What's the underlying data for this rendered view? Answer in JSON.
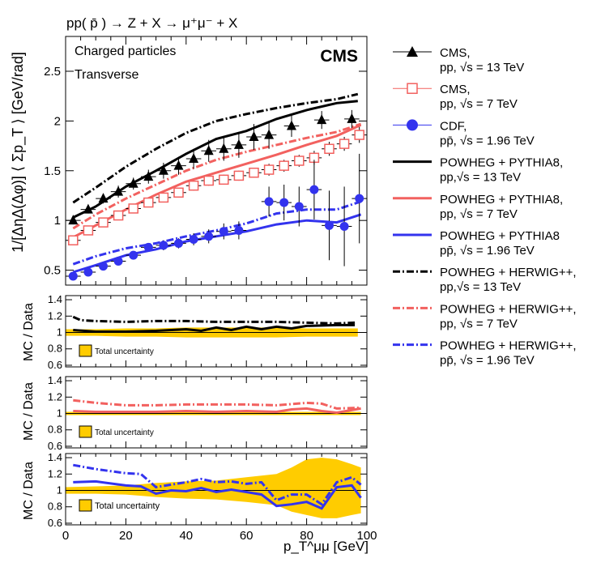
{
  "chart_data": {
    "type": "line",
    "title": "pp( p̄ ) → Z + X → μ⁺μ⁻ + X",
    "annotations": [
      "Charged particles",
      "Transverse",
      "CMS"
    ],
    "colors": {
      "black": "#000000",
      "red": "#f2615f",
      "blue": "#3333ee",
      "band": "#ffcc00"
    },
    "main_panel": {
      "ylabel": "1/[ΔηΔ(Δφ)] ⟨ Σp_T ⟩ [GeV/rad]",
      "xlim": [
        0,
        100
      ],
      "ylim": [
        0.35,
        2.85
      ],
      "yticks": [
        0.5,
        1,
        1.5,
        2,
        2.5
      ],
      "series": [
        {
          "name": "CMS 13 TeV data",
          "kind": "markers",
          "marker": "triangle",
          "color": "#000000",
          "x": [
            2.5,
            7.5,
            12.5,
            17.5,
            22.5,
            27.5,
            32.5,
            37.5,
            42.5,
            47.5,
            52.5,
            57.5,
            62.5,
            67.5,
            75,
            85,
            95
          ],
          "y": [
            1.0,
            1.11,
            1.22,
            1.29,
            1.37,
            1.44,
            1.5,
            1.55,
            1.62,
            1.7,
            1.72,
            1.76,
            1.84,
            1.86,
            1.95,
            2.01,
            2.02
          ],
          "err": [
            0.04,
            0.04,
            0.05,
            0.06,
            0.06,
            0.07,
            0.08,
            0.09,
            0.1,
            0.11,
            0.12,
            0.13,
            0.13,
            0.14,
            0.11,
            0.09,
            0.09
          ]
        },
        {
          "name": "CMS 7 TeV data",
          "kind": "markers",
          "marker": "open-square",
          "color": "#f2615f",
          "x": [
            2.5,
            7.5,
            12.5,
            17.5,
            22.5,
            27.5,
            32.5,
            37.5,
            42.5,
            47.5,
            52.5,
            57.5,
            62.5,
            67.5,
            72.5,
            77.5,
            82.5,
            87.5,
            92.5,
            97.5
          ],
          "y": [
            0.8,
            0.9,
            0.98,
            1.05,
            1.12,
            1.18,
            1.23,
            1.28,
            1.35,
            1.4,
            1.41,
            1.45,
            1.48,
            1.51,
            1.55,
            1.6,
            1.63,
            1.72,
            1.77,
            1.86
          ],
          "err": [
            0.02,
            0.02,
            0.03,
            0.03,
            0.03,
            0.04,
            0.04,
            0.04,
            0.05,
            0.05,
            0.05,
            0.05,
            0.05,
            0.06,
            0.06,
            0.06,
            0.07,
            0.07,
            0.07,
            0.08
          ]
        },
        {
          "name": "CDF 1.96 TeV data",
          "kind": "markers",
          "marker": "circle",
          "color": "#3333ee",
          "x": [
            2.5,
            7.5,
            12.5,
            17.5,
            22.5,
            27.5,
            32.5,
            37.5,
            42.5,
            47.5,
            52.5,
            57.5,
            67.5,
            72.5,
            77.5,
            82.5,
            87.5,
            92.5,
            97.5
          ],
          "y": [
            0.44,
            0.48,
            0.54,
            0.59,
            0.65,
            0.73,
            0.75,
            0.77,
            0.81,
            0.84,
            0.89,
            0.9,
            1.19,
            1.18,
            1.14,
            1.31,
            0.95,
            0.94,
            1.22
          ],
          "err": [
            0.02,
            0.02,
            0.03,
            0.03,
            0.04,
            0.04,
            0.05,
            0.05,
            0.06,
            0.07,
            0.08,
            0.09,
            0.15,
            0.18,
            0.2,
            0.3,
            0.35,
            0.4,
            0.45
          ]
        },
        {
          "name": "POWHEG + PYTHIA8 13 TeV",
          "kind": "line",
          "style": "solid",
          "color": "#000000",
          "x": [
            2.5,
            10,
            20,
            30,
            40,
            50,
            60,
            70,
            80,
            90,
            97
          ],
          "y": [
            1.03,
            1.14,
            1.34,
            1.5,
            1.67,
            1.82,
            1.9,
            2.02,
            2.11,
            2.18,
            2.2
          ]
        },
        {
          "name": "POWHEG + PYTHIA8 7 TeV",
          "kind": "line",
          "style": "solid",
          "color": "#f2615f",
          "x": [
            2.5,
            10,
            20,
            30,
            40,
            50,
            60,
            70,
            80,
            90,
            98
          ],
          "y": [
            0.83,
            0.95,
            1.11,
            1.26,
            1.39,
            1.48,
            1.57,
            1.66,
            1.76,
            1.85,
            1.96
          ]
        },
        {
          "name": "POWHEG + PYTHIA8 1.96 TeV",
          "kind": "line",
          "style": "solid",
          "color": "#3333ee",
          "x": [
            2.5,
            10,
            20,
            30,
            40,
            50,
            60,
            70,
            80,
            90,
            98
          ],
          "y": [
            0.48,
            0.55,
            0.65,
            0.71,
            0.79,
            0.84,
            0.89,
            0.96,
            1.0,
            0.98,
            1.06
          ]
        },
        {
          "name": "POWHEG + HERWIG++ 13 TeV",
          "kind": "line",
          "style": "dashdot",
          "color": "#000000",
          "x": [
            2.5,
            10,
            20,
            30,
            40,
            50,
            60,
            70,
            80,
            90,
            97
          ],
          "y": [
            1.18,
            1.33,
            1.54,
            1.72,
            1.88,
            2.0,
            2.07,
            2.13,
            2.18,
            2.22,
            2.27
          ]
        },
        {
          "name": "POWHEG + HERWIG++ 7 TeV",
          "kind": "line",
          "style": "dashdot",
          "color": "#f2615f",
          "x": [
            2.5,
            10,
            20,
            30,
            40,
            50,
            60,
            70,
            80,
            90,
            98
          ],
          "y": [
            0.92,
            1.06,
            1.22,
            1.36,
            1.5,
            1.61,
            1.69,
            1.76,
            1.83,
            1.89,
            1.97
          ]
        },
        {
          "name": "POWHEG + HERWIG++ 1.96 TeV",
          "kind": "line",
          "style": "dashdot",
          "color": "#3333ee",
          "x": [
            2.5,
            10,
            20,
            30,
            40,
            50,
            60,
            70,
            80,
            90,
            98
          ],
          "y": [
            0.56,
            0.64,
            0.72,
            0.77,
            0.84,
            0.9,
            0.97,
            1.07,
            1.11,
            1.11,
            1.19
          ]
        }
      ]
    },
    "ratio_panels": [
      {
        "ylabel": "MC / Data",
        "ylim": [
          0.58,
          1.45
        ],
        "yticks": [
          0.6,
          0.8,
          1,
          1.2,
          1.4
        ],
        "band_label": "Total uncertainty",
        "band": {
          "x": [
            0,
            10,
            20,
            30,
            40,
            50,
            60,
            70,
            80,
            90,
            97
          ],
          "lo": [
            0.96,
            0.96,
            0.95,
            0.95,
            0.94,
            0.94,
            0.94,
            0.94,
            0.95,
            0.95,
            0.95
          ],
          "hi": [
            1.04,
            1.04,
            1.05,
            1.05,
            1.06,
            1.06,
            1.06,
            1.06,
            1.05,
            1.05,
            1.05
          ]
        },
        "lines": [
          {
            "color": "#000000",
            "style": "solid",
            "x": [
              2.5,
              10,
              20,
              30,
              40,
              45,
              50,
              55,
              60,
              65,
              70,
              75,
              80,
              90,
              96
            ],
            "y": [
              1.03,
              1.01,
              1.01,
              1.02,
              1.04,
              1.02,
              1.06,
              1.03,
              1.07,
              1.04,
              1.07,
              1.05,
              1.08,
              1.09,
              1.09
            ]
          },
          {
            "color": "#000000",
            "style": "dashdot",
            "x": [
              2.5,
              5,
              10,
              20,
              30,
              40,
              50,
              60,
              70,
              80,
              90,
              96
            ],
            "y": [
              1.19,
              1.15,
              1.14,
              1.13,
              1.14,
              1.14,
              1.13,
              1.13,
              1.13,
              1.12,
              1.11,
              1.12
            ]
          }
        ]
      },
      {
        "ylabel": "MC / Data",
        "ylim": [
          0.58,
          1.45
        ],
        "yticks": [
          0.6,
          0.8,
          1,
          1.2,
          1.4
        ],
        "band_label": "Total uncertainty",
        "band": {
          "x": [
            0,
            10,
            20,
            30,
            40,
            50,
            60,
            70,
            80,
            90,
            98
          ],
          "lo": [
            0.98,
            0.98,
            0.98,
            0.98,
            0.98,
            0.98,
            0.98,
            0.98,
            0.98,
            0.98,
            0.98
          ],
          "hi": [
            1.02,
            1.02,
            1.02,
            1.02,
            1.02,
            1.02,
            1.02,
            1.02,
            1.02,
            1.02,
            1.02
          ]
        },
        "lines": [
          {
            "color": "#f2615f",
            "style": "solid",
            "x": [
              2.5,
              10,
              20,
              30,
              40,
              50,
              60,
              70,
              75,
              80,
              85,
              90,
              98
            ],
            "y": [
              1.03,
              1.02,
              1.02,
              1.02,
              1.03,
              1.02,
              1.03,
              1.02,
              1.05,
              1.06,
              1.03,
              1.01,
              1.06
            ]
          },
          {
            "color": "#f2615f",
            "style": "dashdot",
            "x": [
              2.5,
              10,
              20,
              30,
              40,
              50,
              60,
              70,
              80,
              85,
              90,
              98
            ],
            "y": [
              1.16,
              1.13,
              1.1,
              1.1,
              1.11,
              1.11,
              1.11,
              1.1,
              1.13,
              1.12,
              1.06,
              1.07
            ]
          }
        ]
      },
      {
        "ylabel": "MC / Data",
        "ylim": [
          0.58,
          1.45
        ],
        "yticks": [
          0.6,
          0.8,
          1,
          1.2,
          1.4
        ],
        "xlabel": "p_T^μμ [GeV]",
        "xticks": [
          0,
          20,
          40,
          60,
          80,
          100
        ],
        "band_label": "Total uncertainty",
        "band": {
          "x": [
            0,
            10,
            20,
            30,
            40,
            50,
            60,
            70,
            75,
            80,
            85,
            90,
            95,
            98
          ],
          "lo": [
            0.96,
            0.96,
            0.95,
            0.92,
            0.9,
            0.89,
            0.86,
            0.82,
            0.74,
            0.7,
            0.66,
            0.66,
            0.7,
            0.72
          ],
          "hi": [
            1.04,
            1.05,
            1.06,
            1.09,
            1.11,
            1.12,
            1.16,
            1.2,
            1.28,
            1.38,
            1.4,
            1.38,
            1.32,
            1.28
          ]
        },
        "lines": [
          {
            "color": "#3333ee",
            "style": "solid",
            "x": [
              2.5,
              10,
              20,
              25,
              30,
              35,
              40,
              45,
              50,
              55,
              60,
              65,
              70,
              75,
              80,
              85,
              90,
              95,
              98
            ],
            "y": [
              1.1,
              1.11,
              1.06,
              1.05,
              0.96,
              1.0,
              0.99,
              1.03,
              0.98,
              1.01,
              0.98,
              0.95,
              0.81,
              0.83,
              0.86,
              0.78,
              1.04,
              1.06,
              0.91
            ]
          },
          {
            "color": "#3333ee",
            "style": "dashdot",
            "x": [
              2.5,
              10,
              20,
              25,
              30,
              35,
              40,
              45,
              50,
              55,
              60,
              65,
              70,
              75,
              80,
              85,
              90,
              95,
              98
            ],
            "y": [
              1.31,
              1.26,
              1.21,
              1.2,
              1.04,
              1.07,
              1.1,
              1.14,
              1.1,
              1.11,
              1.08,
              1.1,
              0.88,
              0.95,
              0.95,
              0.83,
              1.1,
              1.16,
              1.07
            ]
          }
        ]
      }
    ],
    "legend": {
      "placement": "right",
      "entries": [
        {
          "line1": "CMS,",
          "line2": "pp, √s = 13 TeV",
          "color": "#000000",
          "kind": "triangle"
        },
        {
          "line1": "CMS,",
          "line2": "pp, √s = 7 TeV",
          "color": "#f2615f",
          "kind": "open-square"
        },
        {
          "line1": "CDF,",
          "line2": "pp̄, √s = 1.96 TeV",
          "color": "#3333ee",
          "kind": "circle"
        },
        {
          "line1": "POWHEG + PYTHIA8,",
          "line2": "pp,√s = 13 TeV",
          "color": "#000000",
          "kind": "solid"
        },
        {
          "line1": "POWHEG + PYTHIA8,",
          "line2": "pp, √s = 7 TeV",
          "color": "#f2615f",
          "kind": "solid"
        },
        {
          "line1": "POWHEG + PYTHIA8",
          "line2": "pp̄, √s = 1.96 TeV",
          "color": "#3333ee",
          "kind": "solid"
        },
        {
          "line1": "POWHEG + HERWIG++,",
          "line2": "pp,√s = 13 TeV",
          "color": "#000000",
          "kind": "dashdot"
        },
        {
          "line1": "POWHEG + HERWIG++,",
          "line2": "pp, √s = 7 TeV",
          "color": "#f2615f",
          "kind": "dashdot"
        },
        {
          "line1": "POWHEG + HERWIG++,",
          "line2": "pp̄, √s = 1.96 TeV",
          "color": "#3333ee",
          "kind": "dashdot"
        }
      ]
    }
  }
}
